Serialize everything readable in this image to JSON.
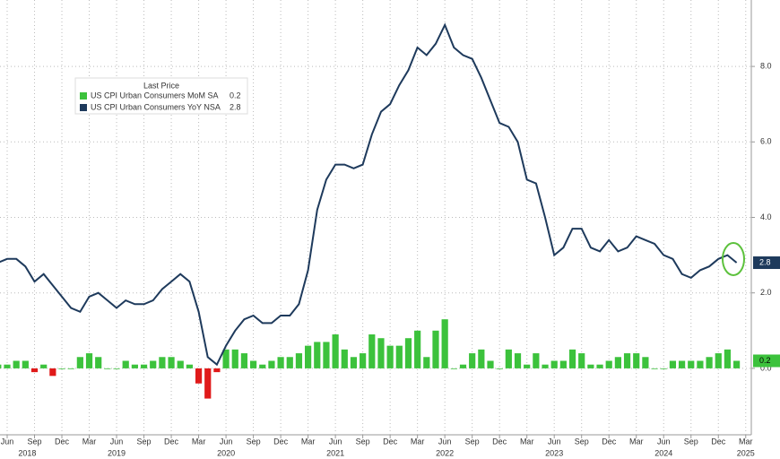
{
  "chart_data": {
    "type": "bar_line",
    "legend_title": "Last Price",
    "categories": [
      null,
      "Jun",
      null,
      null,
      "Sep",
      null,
      null,
      "Dec",
      null,
      null,
      "Mar",
      null,
      null,
      "Jun",
      null,
      null,
      "Sep",
      null,
      null,
      "Dec",
      null,
      null,
      "Mar",
      null,
      null,
      "Jun",
      null,
      null,
      "Sep",
      null,
      null,
      "Dec",
      null,
      null,
      "Mar",
      null,
      null,
      "Jun",
      null,
      null,
      "Sep",
      null,
      null,
      "Dec",
      null,
      null,
      "Mar",
      null,
      null,
      "Jun",
      null,
      null,
      "Sep",
      null,
      null,
      "Dec",
      null,
      null,
      "Mar",
      null,
      null,
      "Jun",
      null,
      null,
      "Sep",
      null,
      null,
      "Dec",
      null,
      null,
      "Mar",
      null,
      null,
      "Jun",
      null,
      null,
      "Sep",
      null,
      null,
      "Dec",
      null,
      null,
      "Mar"
    ],
    "years": [
      "2018",
      "2019",
      "2020",
      "2021",
      "2022",
      "2023",
      "2024",
      "2025"
    ],
    "series": [
      {
        "name": "US CPI Urban Consumers MoM SA",
        "kind": "bar",
        "color": "#3cc23c",
        "negative_color": "#e01a1a",
        "values": [
          0.1,
          0.1,
          0.2,
          0.2,
          -0.1,
          0.1,
          -0.2,
          0.0,
          0.0,
          0.3,
          0.4,
          0.3,
          0.0,
          0.0,
          0.2,
          0.1,
          0.1,
          0.2,
          0.3,
          0.3,
          0.2,
          0.1,
          -0.4,
          -0.8,
          -0.1,
          0.5,
          0.5,
          0.4,
          0.2,
          0.1,
          0.2,
          0.3,
          0.3,
          0.4,
          0.6,
          0.7,
          0.7,
          0.9,
          0.5,
          0.3,
          0.4,
          0.9,
          0.8,
          0.6,
          0.6,
          0.8,
          1.0,
          0.3,
          1.0,
          1.3,
          0.0,
          0.1,
          0.4,
          0.5,
          0.2,
          0.0,
          0.5,
          0.4,
          0.1,
          0.4,
          0.1,
          0.2,
          0.2,
          0.5,
          0.4,
          0.1,
          0.1,
          0.2,
          0.3,
          0.4,
          0.4,
          0.3,
          0.0,
          0.0,
          0.2,
          0.2,
          0.2,
          0.2,
          0.3,
          0.4,
          0.5,
          0.2,
          null
        ]
      },
      {
        "name": "US CPI Urban Consumers YoY NSA",
        "kind": "line",
        "color": "#1e3a5c",
        "values": [
          2.8,
          2.9,
          2.9,
          2.7,
          2.3,
          2.5,
          2.2,
          1.9,
          1.6,
          1.5,
          1.9,
          2.0,
          1.8,
          1.6,
          1.8,
          1.7,
          1.7,
          1.8,
          2.1,
          2.3,
          2.5,
          2.3,
          1.5,
          0.3,
          0.1,
          0.6,
          1.0,
          1.3,
          1.4,
          1.2,
          1.2,
          1.4,
          1.4,
          1.7,
          2.6,
          4.2,
          5.0,
          5.4,
          5.4,
          5.3,
          5.4,
          6.2,
          6.8,
          7.0,
          7.5,
          7.9,
          8.5,
          8.3,
          8.6,
          9.1,
          8.5,
          8.3,
          8.2,
          7.7,
          7.1,
          6.5,
          6.4,
          6.0,
          5.0,
          4.9,
          4.0,
          3.0,
          3.2,
          3.7,
          3.7,
          3.2,
          3.1,
          3.4,
          3.1,
          3.2,
          3.5,
          3.4,
          3.3,
          3.0,
          2.9,
          2.5,
          2.4,
          2.6,
          2.7,
          2.9,
          3.0,
          2.8,
          null
        ]
      }
    ],
    "ylim": [
      -1.76,
      9.76
    ],
    "yticks": [
      {
        "value": 0,
        "label": "0.0"
      },
      {
        "value": 2,
        "label": "2.0"
      },
      {
        "value": 4,
        "label": "4.0"
      },
      {
        "value": 6,
        "label": "6.0"
      },
      {
        "value": 8,
        "label": "8.0"
      }
    ],
    "grid": true
  }
}
